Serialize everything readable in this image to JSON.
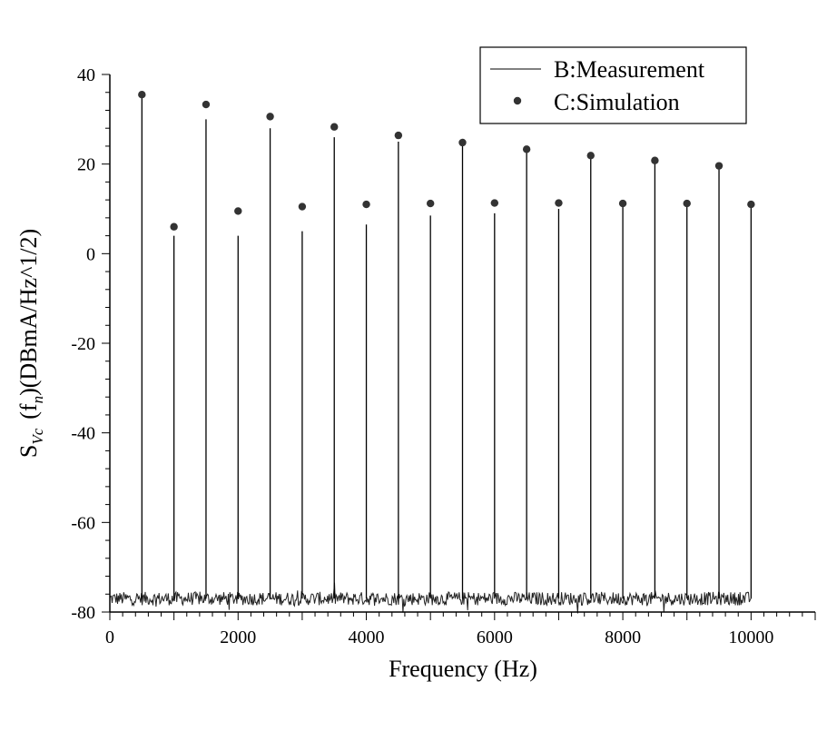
{
  "chart_data": {
    "type": "line",
    "title": "",
    "xlabel": "Frequency (Hz)",
    "ylabel": {
      "main": "S",
      "sub1": "Vc",
      "paren_open": "(f",
      "sub2": "n",
      "rest": ")(DBmA/Hz^1/2)"
    },
    "xlim": [
      0,
      11000
    ],
    "ylim": [
      -80,
      40
    ],
    "x_ticks": [
      0,
      2000,
      4000,
      6000,
      8000,
      10000
    ],
    "y_ticks": [
      -80,
      -60,
      -40,
      -20,
      0,
      20,
      40
    ],
    "x_minor_step": 200,
    "y_minor_step": 4,
    "grid": false,
    "legend": "top-right",
    "noise_floor": {
      "x_range": [
        0,
        10000
      ],
      "mean": -77,
      "spread": 1.5
    },
    "series": [
      {
        "name": "B:Measurement",
        "style": "line",
        "color": "#000000",
        "x": [
          500,
          1000,
          1500,
          2000,
          2500,
          3000,
          3500,
          4000,
          4500,
          5000,
          5500,
          6000,
          6500,
          7000,
          7500,
          8000,
          8500,
          9000,
          9500,
          10000
        ],
        "y": [
          35,
          4,
          30,
          4,
          28,
          5,
          26,
          6.5,
          25,
          8.5,
          24,
          9,
          23,
          10,
          21.5,
          10.5,
          20.5,
          10.5,
          19.5,
          10.5
        ]
      },
      {
        "name": "C:Simulation",
        "style": "scatter",
        "color": "#333333",
        "x": [
          500,
          1000,
          1500,
          2000,
          2500,
          3000,
          3500,
          4000,
          4500,
          5000,
          5500,
          6000,
          6500,
          7000,
          7500,
          8000,
          8500,
          9000,
          9500,
          10000
        ],
        "y": [
          35.5,
          6,
          33.3,
          9.5,
          30.6,
          10.5,
          28.3,
          11,
          26.4,
          11.2,
          24.8,
          11.3,
          23.3,
          11.3,
          21.9,
          11.2,
          20.8,
          11.2,
          19.6,
          11
        ]
      }
    ]
  }
}
